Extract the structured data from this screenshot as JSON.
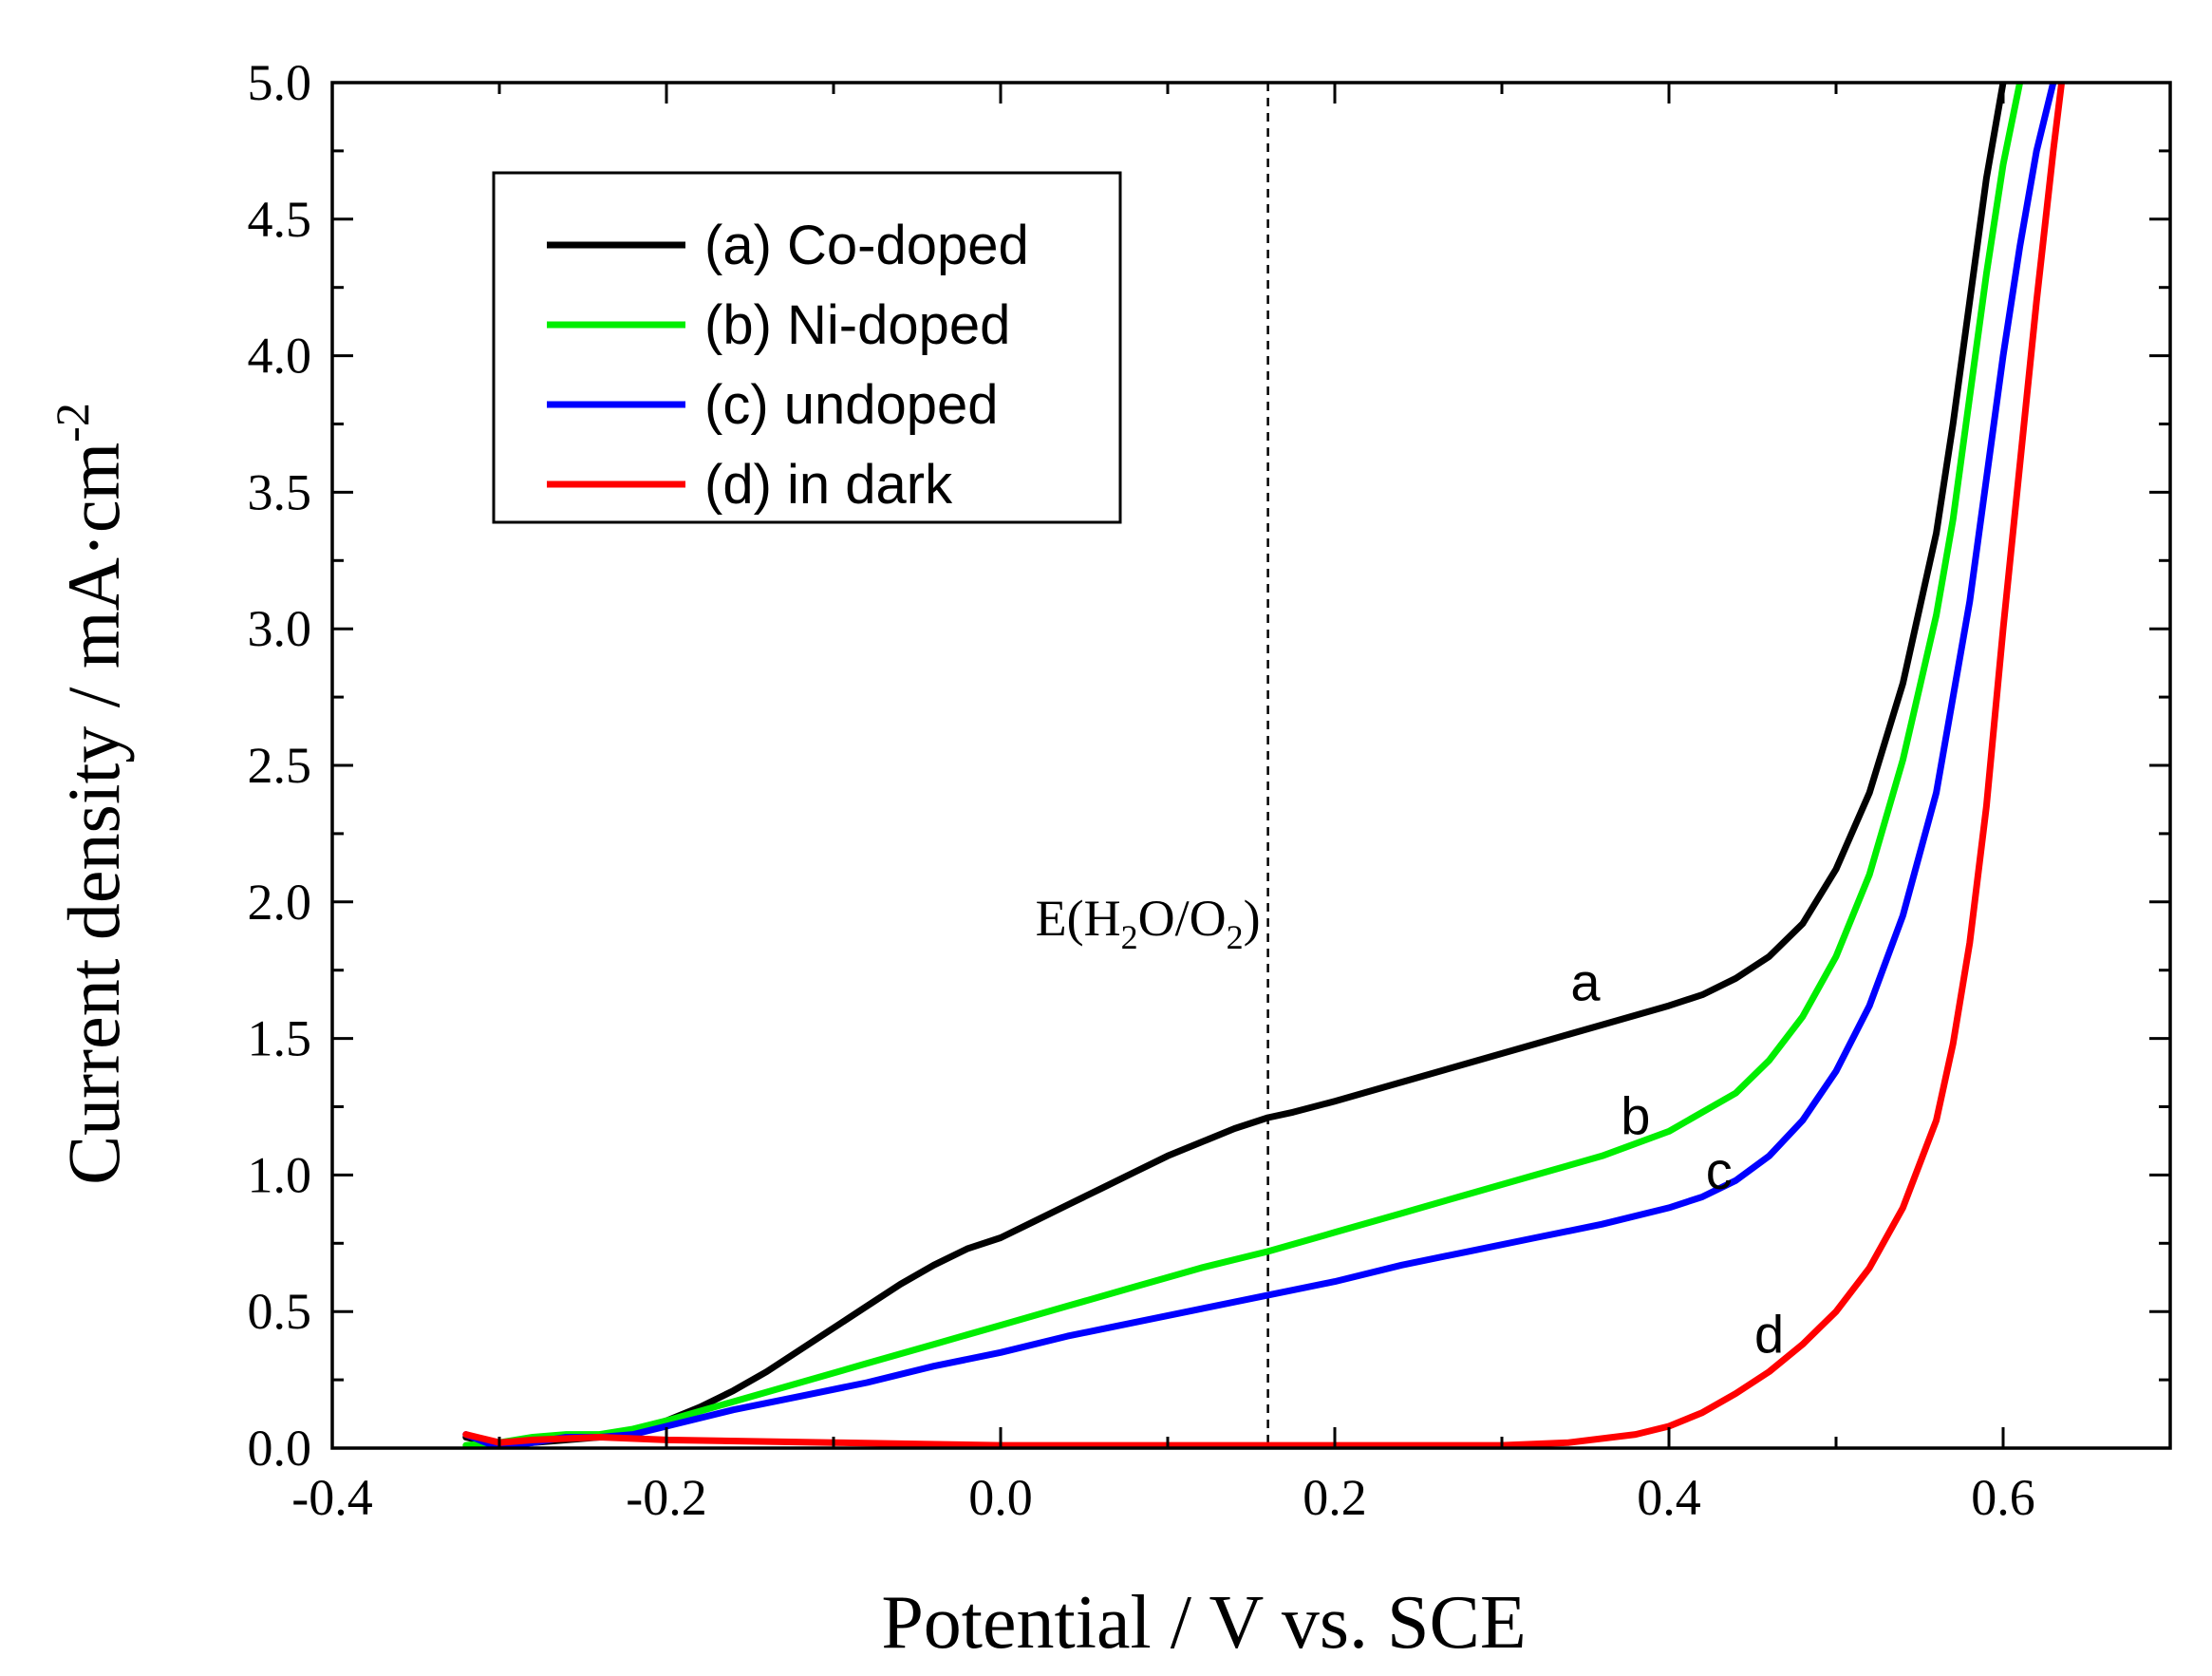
{
  "chart_data": {
    "type": "line",
    "xlabel": "Potential / V vs. SCE",
    "ylabel": {
      "text": "Current density / mA·cm",
      "superscript": "-2"
    },
    "xlim": [
      -0.4,
      0.7
    ],
    "ylim": [
      0.0,
      5.0
    ],
    "x_ticks": [
      {
        "value": -0.4,
        "label": "-0.4"
      },
      {
        "value": -0.2,
        "label": "-0.2"
      },
      {
        "value": 0.0,
        "label": "0.0"
      },
      {
        "value": 0.2,
        "label": "0.2"
      },
      {
        "value": 0.4,
        "label": "0.4"
      },
      {
        "value": 0.6,
        "label": "0.6"
      }
    ],
    "y_ticks": [
      {
        "value": 0.0,
        "label": "0.0"
      },
      {
        "value": 0.5,
        "label": "0.5"
      },
      {
        "value": 1.0,
        "label": "1.0"
      },
      {
        "value": 1.5,
        "label": "1.5"
      },
      {
        "value": 2.0,
        "label": "2.0"
      },
      {
        "value": 2.5,
        "label": "2.5"
      },
      {
        "value": 3.0,
        "label": "3.0"
      },
      {
        "value": 3.5,
        "label": "3.5"
      },
      {
        "value": 4.0,
        "label": "4.0"
      },
      {
        "value": 4.5,
        "label": "4.5"
      },
      {
        "value": 5.0,
        "label": "5.0"
      }
    ],
    "grid": false,
    "legend_placement": "top-left",
    "reference_line": {
      "x": 0.16,
      "label_parts": [
        "E(H",
        "2",
        "O/O",
        "2",
        ")"
      ]
    },
    "series": [
      {
        "name": "(a) Co-doped",
        "annotation": "a",
        "color": "#000000",
        "x": [
          -0.32,
          -0.3,
          -0.28,
          -0.26,
          -0.24,
          -0.22,
          -0.2,
          -0.18,
          -0.16,
          -0.14,
          -0.12,
          -0.1,
          -0.08,
          -0.06,
          -0.04,
          -0.02,
          0.0,
          0.02,
          0.04,
          0.06,
          0.08,
          0.1,
          0.12,
          0.14,
          0.16,
          0.175,
          0.2,
          0.24,
          0.28,
          0.32,
          0.36,
          0.4,
          0.42,
          0.44,
          0.46,
          0.48,
          0.5,
          0.52,
          0.54,
          0.56,
          0.57,
          0.58,
          0.59,
          0.6
        ],
        "y": [
          0.04,
          0.01,
          0.02,
          0.03,
          0.04,
          0.06,
          0.1,
          0.15,
          0.21,
          0.28,
          0.36,
          0.44,
          0.52,
          0.6,
          0.67,
          0.73,
          0.77,
          0.83,
          0.89,
          0.95,
          1.01,
          1.07,
          1.12,
          1.17,
          1.21,
          1.23,
          1.27,
          1.34,
          1.41,
          1.48,
          1.55,
          1.62,
          1.66,
          1.72,
          1.8,
          1.92,
          2.12,
          2.4,
          2.8,
          3.35,
          3.75,
          4.2,
          4.65,
          5.0
        ]
      },
      {
        "name": "(b) Ni-doped",
        "annotation": "b",
        "color": "#00ee00",
        "x": [
          -0.32,
          -0.3,
          -0.28,
          -0.26,
          -0.24,
          -0.22,
          -0.2,
          -0.16,
          -0.12,
          -0.08,
          -0.04,
          0.0,
          0.04,
          0.08,
          0.12,
          0.16,
          0.2,
          0.24,
          0.28,
          0.32,
          0.36,
          0.4,
          0.44,
          0.46,
          0.48,
          0.5,
          0.52,
          0.54,
          0.56,
          0.57,
          0.58,
          0.59,
          0.6,
          0.61
        ],
        "y": [
          0.01,
          0.02,
          0.04,
          0.05,
          0.05,
          0.07,
          0.1,
          0.17,
          0.24,
          0.31,
          0.38,
          0.45,
          0.52,
          0.59,
          0.66,
          0.72,
          0.79,
          0.86,
          0.93,
          1.0,
          1.07,
          1.16,
          1.3,
          1.42,
          1.58,
          1.8,
          2.1,
          2.52,
          3.05,
          3.4,
          3.85,
          4.3,
          4.7,
          5.0
        ]
      },
      {
        "name": "(c) undoped",
        "annotation": "c",
        "color": "#0000ff",
        "x": [
          -0.32,
          -0.3,
          -0.28,
          -0.26,
          -0.24,
          -0.22,
          -0.2,
          -0.16,
          -0.12,
          -0.08,
          -0.04,
          0.0,
          0.04,
          0.08,
          0.12,
          0.16,
          0.2,
          0.24,
          0.28,
          0.32,
          0.36,
          0.4,
          0.42,
          0.44,
          0.46,
          0.48,
          0.5,
          0.52,
          0.54,
          0.56,
          0.58,
          0.59,
          0.6,
          0.61,
          0.62,
          0.63
        ],
        "y": [
          0.05,
          0.0,
          0.02,
          0.04,
          0.04,
          0.05,
          0.08,
          0.14,
          0.19,
          0.24,
          0.3,
          0.35,
          0.41,
          0.46,
          0.51,
          0.56,
          0.61,
          0.67,
          0.72,
          0.77,
          0.82,
          0.88,
          0.92,
          0.98,
          1.07,
          1.2,
          1.38,
          1.62,
          1.95,
          2.4,
          3.1,
          3.55,
          4.0,
          4.4,
          4.75,
          5.0
        ]
      },
      {
        "name": "(d) in dark",
        "annotation": "d",
        "color": "#ff0000",
        "x": [
          -0.32,
          -0.3,
          -0.28,
          -0.24,
          -0.2,
          -0.1,
          0.0,
          0.1,
          0.2,
          0.3,
          0.34,
          0.38,
          0.4,
          0.42,
          0.44,
          0.46,
          0.48,
          0.5,
          0.52,
          0.54,
          0.56,
          0.57,
          0.58,
          0.59,
          0.6,
          0.61,
          0.62,
          0.63,
          0.635
        ],
        "y": [
          0.05,
          0.02,
          0.03,
          0.04,
          0.03,
          0.02,
          0.01,
          0.01,
          0.01,
          0.01,
          0.02,
          0.05,
          0.08,
          0.13,
          0.2,
          0.28,
          0.38,
          0.5,
          0.66,
          0.88,
          1.2,
          1.48,
          1.85,
          2.35,
          3.0,
          3.6,
          4.2,
          4.75,
          5.0
        ]
      }
    ]
  }
}
